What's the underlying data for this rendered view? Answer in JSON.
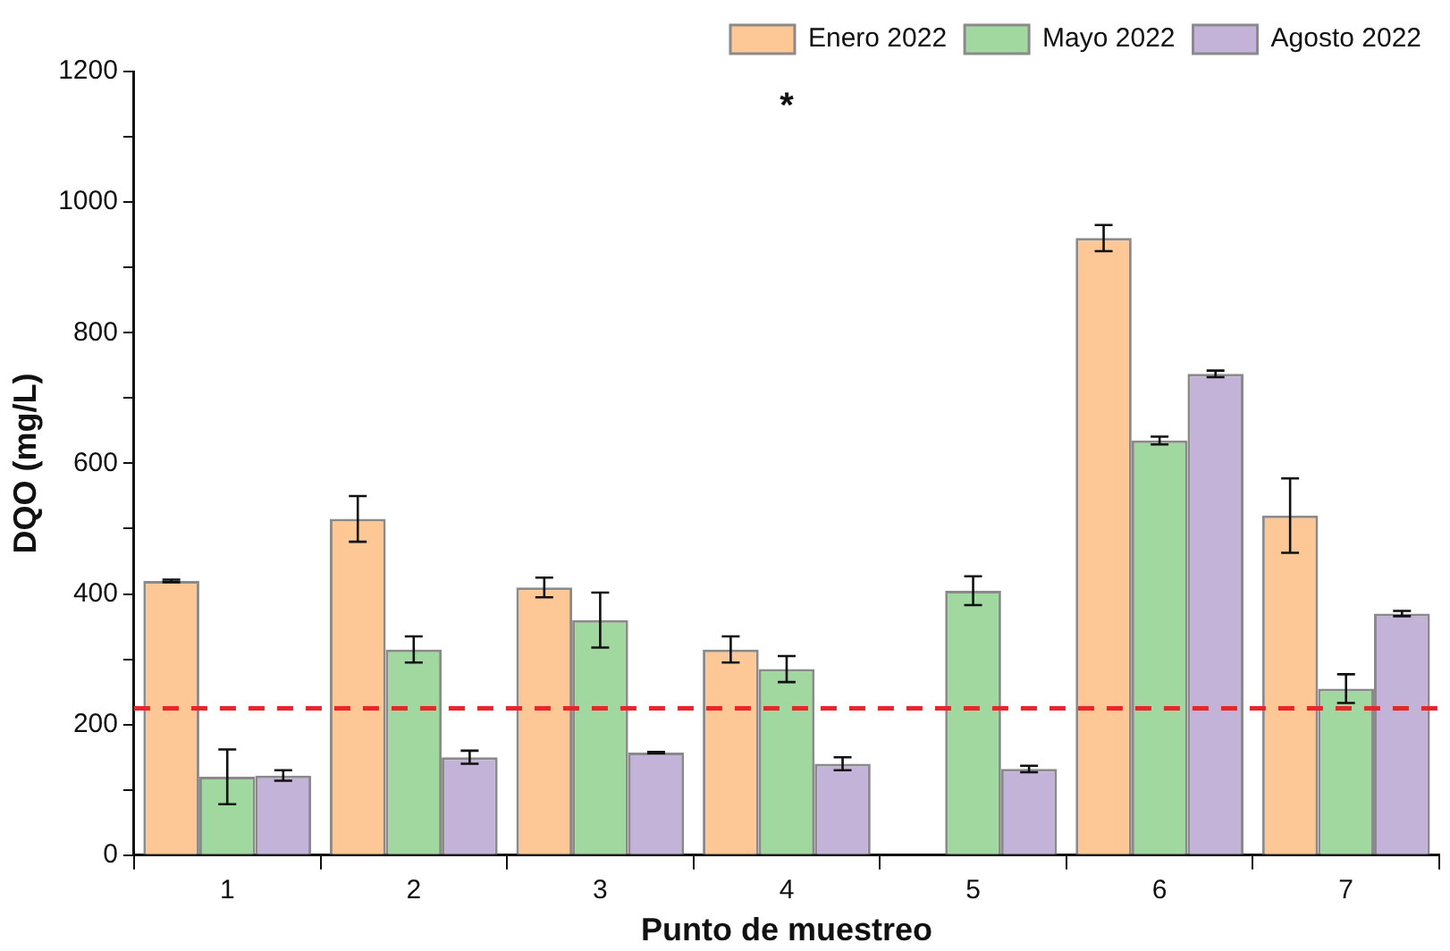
{
  "chart_data": {
    "type": "bar",
    "xlabel": "Punto de muestreo",
    "ylabel": "DQO (mg/L)",
    "categories": [
      "1",
      "2",
      "3",
      "4",
      "5",
      "6",
      "7"
    ],
    "series": [
      {
        "name": "Enero 2022",
        "color": "#fec896",
        "values": [
          420,
          515,
          410,
          315,
          null,
          945,
          520
        ],
        "errors": [
          2,
          35,
          15,
          20,
          null,
          20,
          57
        ]
      },
      {
        "name": "Mayo 2022",
        "color": "#a0d8a0",
        "values": [
          120,
          315,
          360,
          285,
          405,
          635,
          255
        ],
        "errors": [
          42,
          20,
          42,
          20,
          22,
          6,
          22
        ]
      },
      {
        "name": "Agosto 2022",
        "color": "#c3b3d8",
        "values": [
          122,
          150,
          157,
          140,
          132,
          737,
          370
        ],
        "errors": [
          8,
          10,
          1,
          10,
          5,
          5,
          4
        ]
      }
    ],
    "ylim": [
      0,
      1200
    ],
    "yticks": [
      0,
      {
        "value": 100,
        "label": null
      },
      200,
      {
        "value": 300,
        "label": null
      },
      400,
      {
        "value": 500,
        "label": null
      },
      600,
      {
        "value": 700,
        "label": null
      },
      800,
      {
        "value": 900,
        "label": null
      },
      1000,
      {
        "value": 1100,
        "label": null
      },
      1200
    ],
    "ref_lines": [
      {
        "axis": "y",
        "value": 225,
        "color": "#e8262a",
        "line_style": "dashed"
      }
    ],
    "annotations": [
      "*"
    ],
    "grid": false,
    "legend": "top right"
  }
}
